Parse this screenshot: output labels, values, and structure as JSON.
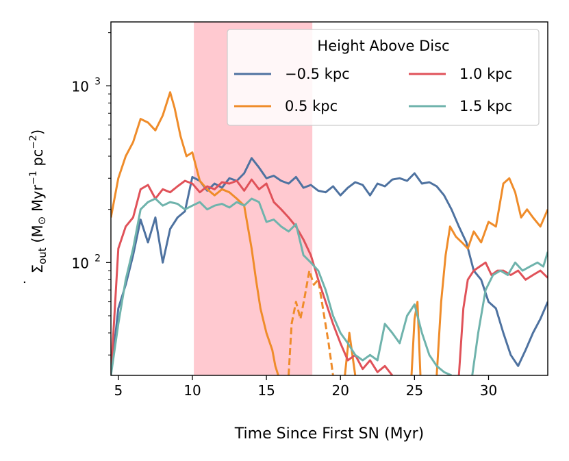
{
  "chart_data": {
    "type": "line",
    "title": "",
    "xlabel": "Time Since First SN (Myr)",
    "ylabel_symbol": "Σ",
    "ylabel_dot": "˙",
    "ylabel_sub": "out",
    "ylabel_units_a": " (M",
    "ylabel_sun": "⊙",
    "ylabel_units_b": " Myr",
    "ylabel_exp_a": "−1",
    "ylabel_units_c": " pc",
    "ylabel_exp_b": "−2",
    "ylabel_units_d": ")",
    "yscale": "log",
    "xlim": [
      4.5,
      34
    ],
    "ylim": [
      23,
      2300
    ],
    "xticks": [
      5,
      10,
      15,
      20,
      25,
      30
    ],
    "yticks": [
      {
        "value": 100,
        "base": "10",
        "exp": "2"
      },
      {
        "value": 1000,
        "base": "10",
        "exp": "3"
      }
    ],
    "yminor_ticks": [
      30,
      40,
      50,
      60,
      70,
      80,
      90,
      200,
      300,
      400,
      500,
      600,
      700,
      800,
      900,
      2000
    ],
    "shaded_region": {
      "x0": 10.1,
      "x1": 18.1,
      "color": "#ffc9d0"
    },
    "legend": {
      "title": "Height Above Disc",
      "placement": "top-right",
      "ncol": 2
    },
    "series": [
      {
        "name": "−0.5 kpc",
        "color": "#4e72a0",
        "dashed": false,
        "x": [
          4.5,
          5.0,
          5.5,
          6.0,
          6.5,
          7.0,
          7.5,
          8.0,
          8.5,
          9.0,
          9.5,
          10.0,
          10.5,
          11.0,
          11.5,
          12.0,
          12.5,
          13.0,
          13.5,
          14.0,
          14.5,
          15.0,
          15.5,
          16.0,
          16.5,
          17.0,
          17.5,
          18.0,
          18.5,
          19.0,
          19.5,
          20.0,
          20.5,
          21.0,
          21.5,
          22.0,
          22.5,
          23.0,
          23.5,
          24.0,
          24.5,
          25.0,
          25.5,
          26.0,
          26.5,
          27.0,
          27.5,
          28.0,
          28.5,
          29.0,
          29.5,
          30.0,
          30.5,
          31.0,
          31.5,
          32.0,
          32.5,
          33.0,
          33.5,
          34.0
        ],
        "y": [
          23,
          55,
          75,
          110,
          175,
          130,
          180,
          100,
          155,
          180,
          195,
          305,
          290,
          255,
          280,
          265,
          300,
          290,
          320,
          390,
          345,
          300,
          310,
          290,
          280,
          305,
          265,
          275,
          255,
          250,
          270,
          240,
          265,
          285,
          275,
          240,
          280,
          270,
          295,
          300,
          290,
          320,
          280,
          285,
          270,
          240,
          200,
          160,
          130,
          90,
          80,
          60,
          55,
          40,
          30,
          26,
          32,
          40,
          48,
          60
        ]
      },
      {
        "name": "0.5 kpc",
        "color": "#ef8c2a",
        "dashed": false,
        "x": [
          4.5,
          5.0,
          5.5,
          6.0,
          6.5,
          7.0,
          7.5,
          8.0,
          8.5,
          8.8,
          9.2,
          9.6,
          10.0,
          10.5,
          11.0,
          11.5,
          12.0,
          12.5,
          13.0,
          13.5,
          14.0,
          14.3,
          14.6,
          15.0,
          15.4,
          15.6,
          15.8
        ],
        "y": [
          180,
          300,
          400,
          480,
          650,
          620,
          560,
          680,
          920,
          750,
          520,
          400,
          420,
          290,
          260,
          240,
          260,
          250,
          230,
          210,
          120,
          80,
          55,
          40,
          32,
          26,
          23
        ]
      },
      {
        "name": "",
        "color": "#ef8c2a",
        "dashed": true,
        "x": [
          16.5,
          16.7,
          17.0,
          17.3,
          17.6,
          17.9,
          18.2,
          18.5,
          18.9,
          19.2,
          19.5
        ],
        "y": [
          23,
          45,
          60,
          48,
          65,
          90,
          75,
          80,
          50,
          35,
          23
        ]
      },
      {
        "name": "",
        "color": "#ef8c2a",
        "dashed": false,
        "x": [
          20.3,
          20.6,
          21.0
        ],
        "y": [
          23,
          40,
          23
        ]
      },
      {
        "name": "",
        "color": "#ef8c2a",
        "dashed": false,
        "x": [
          24.8,
          25.0,
          25.2,
          25.4
        ],
        "y": [
          23,
          48,
          60,
          23
        ]
      },
      {
        "name": "",
        "color": "#ef8c2a",
        "dashed": false,
        "x": [
          26.5,
          26.8,
          27.1,
          27.4,
          27.8,
          28.2,
          28.6,
          29.0,
          29.5,
          30.0,
          30.5,
          31.0,
          31.4,
          31.8,
          32.2,
          32.6,
          33.0,
          33.5,
          34.0
        ],
        "y": [
          23,
          60,
          110,
          160,
          140,
          130,
          120,
          150,
          130,
          170,
          160,
          280,
          300,
          250,
          180,
          200,
          180,
          160,
          200
        ]
      },
      {
        "name": "1.0 kpc",
        "color": "#e05259",
        "dashed": false,
        "x": [
          4.5,
          5.0,
          5.5,
          6.0,
          6.5,
          7.0,
          7.5,
          8.0,
          8.5,
          9.0,
          9.5,
          10.0,
          10.5,
          11.0,
          11.5,
          12.0,
          12.5,
          13.0,
          13.5,
          14.0,
          14.5,
          15.0,
          15.5,
          16.0,
          16.5,
          17.0,
          17.5,
          18.0,
          18.5,
          19.0,
          19.5,
          20.0,
          20.5,
          21.0,
          21.5,
          22.0,
          22.5,
          23.0,
          23.5
        ],
        "y": [
          23,
          120,
          160,
          180,
          260,
          275,
          230,
          260,
          250,
          270,
          290,
          280,
          250,
          270,
          260,
          285,
          280,
          290,
          255,
          295,
          260,
          280,
          220,
          200,
          180,
          160,
          135,
          110,
          80,
          60,
          45,
          35,
          28,
          30,
          25,
          28,
          24,
          26,
          23
        ]
      },
      {
        "name": "",
        "color": "#e05259",
        "dashed": false,
        "x": [
          28.0,
          28.3,
          28.6,
          29.0,
          29.4,
          29.8,
          30.2,
          30.6,
          31.0,
          31.5,
          32.0,
          32.5,
          33.0,
          33.5,
          34.0
        ],
        "y": [
          23,
          55,
          80,
          90,
          95,
          100,
          85,
          90,
          90,
          85,
          90,
          80,
          85,
          90,
          82
        ]
      },
      {
        "name": "1.5 kpc",
        "color": "#6fb3ac",
        "dashed": false,
        "x": [
          4.5,
          5.0,
          5.5,
          6.0,
          6.5,
          7.0,
          7.5,
          8.0,
          8.5,
          9.0,
          9.5,
          10.0,
          10.5,
          11.0,
          11.5,
          12.0,
          12.5,
          13.0,
          13.5,
          14.0,
          14.5,
          15.0,
          15.5,
          16.0,
          16.5,
          17.0,
          17.5,
          18.0,
          18.5,
          19.0,
          19.5,
          20.0,
          20.5,
          21.0,
          21.5,
          22.0,
          22.5,
          23.0,
          23.5,
          24.0,
          24.5,
          25.0,
          25.5,
          26.0,
          26.5,
          27.0,
          27.5
        ],
        "y": [
          23,
          45,
          80,
          120,
          200,
          220,
          230,
          210,
          220,
          215,
          200,
          210,
          220,
          200,
          210,
          215,
          205,
          220,
          210,
          230,
          220,
          170,
          175,
          160,
          150,
          165,
          110,
          100,
          90,
          70,
          50,
          40,
          35,
          30,
          28,
          30,
          28,
          45,
          40,
          35,
          50,
          58,
          40,
          30,
          26,
          24,
          23
        ]
      },
      {
        "name": "",
        "color": "#6fb3ac",
        "dashed": false,
        "x": [
          28.9,
          29.3,
          29.8,
          30.3,
          30.8,
          31.3,
          31.8,
          32.3,
          32.8,
          33.3,
          33.7,
          34.0
        ],
        "y": [
          23,
          40,
          70,
          85,
          90,
          85,
          100,
          90,
          95,
          100,
          95,
          115
        ]
      }
    ]
  }
}
